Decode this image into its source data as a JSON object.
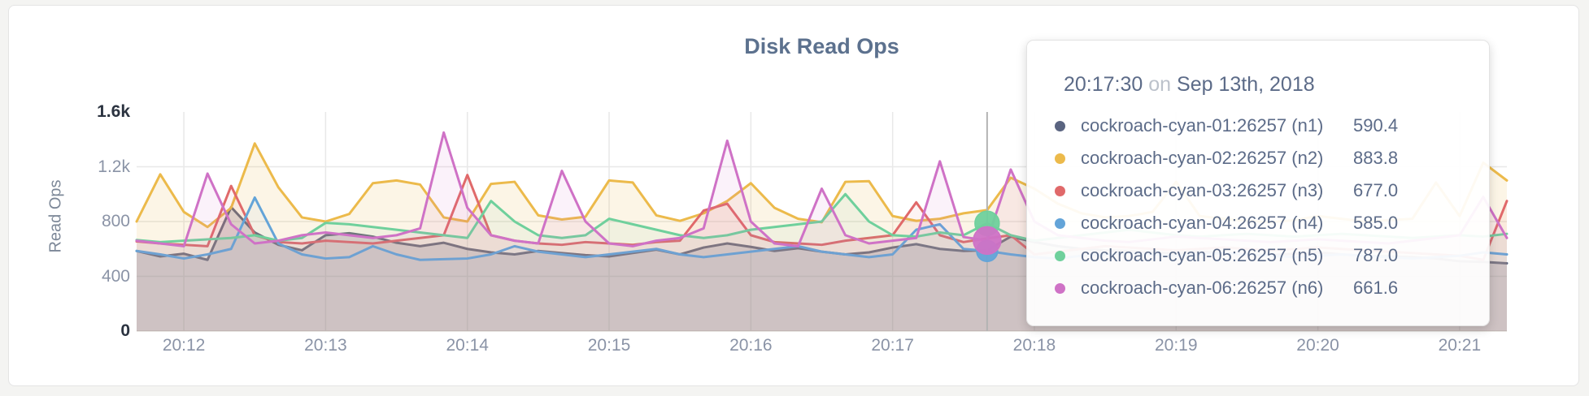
{
  "page": {
    "background": "#f4f4f2",
    "panel_background": "#ffffff",
    "panel_border": "#e4e4e4"
  },
  "chart_data": {
    "type": "line",
    "title": "Disk Read Ops",
    "ylabel": "Read Ops",
    "ylim": [
      0,
      1600
    ],
    "grid": true,
    "x_unit": "time",
    "x_start": "20:11:40",
    "x_step_seconds": 10,
    "grid_y": [
      400,
      800,
      1200
    ],
    "y_ticks": [
      {
        "value": 0,
        "label": "0",
        "emph": true
      },
      {
        "value": 400,
        "label": "400",
        "emph": false
      },
      {
        "value": 800,
        "label": "800",
        "emph": false
      },
      {
        "value": 1200,
        "label": "1.2k",
        "emph": false
      },
      {
        "value": 1600,
        "label": "1.6k",
        "emph": true
      }
    ],
    "x_ticks": [
      {
        "index": 2,
        "label": "20:12"
      },
      {
        "index": 8,
        "label": "20:13"
      },
      {
        "index": 14,
        "label": "20:14"
      },
      {
        "index": 20,
        "label": "20:15"
      },
      {
        "index": 26,
        "label": "20:16"
      },
      {
        "index": 32,
        "label": "20:17"
      },
      {
        "index": 38,
        "label": "20:18"
      },
      {
        "index": 44,
        "label": "20:19"
      },
      {
        "index": 50,
        "label": "20:20"
      },
      {
        "index": 56,
        "label": "20:21"
      }
    ],
    "series": [
      {
        "id": "n1",
        "name": "cockroach-cyan-01:26257 (n1)",
        "color": "#5a6480",
        "fill_opacity": 0.22,
        "values": [
          585,
          545,
          565,
          520,
          905,
          720,
          630,
          590,
          700,
          715,
          690,
          645,
          620,
          645,
          600,
          575,
          560,
          585,
          570,
          555,
          545,
          570,
          595,
          560,
          610,
          640,
          615,
          585,
          605,
          580,
          560,
          575,
          610,
          635,
          600,
          585,
          590.4,
          690,
          650,
          620,
          600,
          590,
          585,
          575,
          565,
          580,
          570,
          560,
          555,
          565,
          575,
          560,
          550,
          545,
          540,
          530,
          510,
          505,
          495
        ]
      },
      {
        "id": "n2",
        "name": "cockroach-cyan-02:26257 (n2)",
        "color": "#ecba4b",
        "fill_opacity": 0.14,
        "values": [
          800,
          1145,
          870,
          760,
          900,
          1370,
          1050,
          830,
          800,
          855,
          1080,
          1100,
          1070,
          830,
          800,
          1075,
          1090,
          845,
          815,
          835,
          1100,
          1085,
          845,
          805,
          860,
          950,
          1080,
          900,
          820,
          795,
          1090,
          1095,
          840,
          805,
          820,
          860,
          883.8,
          1120,
          1040,
          930,
          860,
          830,
          840,
          870,
          1090,
          840,
          820,
          805,
          795,
          810,
          840,
          820,
          800,
          810,
          820,
          1085,
          840,
          1230,
          1100
        ]
      },
      {
        "id": "n3",
        "name": "cockroach-cyan-03:26257 (n3)",
        "color": "#e0696a",
        "fill_opacity": 0.07,
        "values": [
          655,
          640,
          630,
          620,
          1060,
          700,
          650,
          640,
          660,
          650,
          640,
          660,
          680,
          700,
          1140,
          700,
          660,
          640,
          630,
          650,
          640,
          630,
          650,
          660,
          880,
          930,
          700,
          650,
          640,
          630,
          660,
          680,
          700,
          940,
          700,
          650,
          677,
          700,
          560,
          580,
          600,
          620,
          610,
          600,
          590,
          600,
          610,
          600,
          590,
          600,
          610,
          600,
          590,
          580,
          570,
          560,
          550,
          520,
          950
        ]
      },
      {
        "id": "n4",
        "name": "cockroach-cyan-04:26257 (n4)",
        "color": "#63a4d8",
        "fill_opacity": 0.06,
        "values": [
          585,
          560,
          530,
          560,
          600,
          975,
          640,
          560,
          530,
          540,
          620,
          560,
          520,
          525,
          530,
          560,
          620,
          580,
          560,
          540,
          560,
          580,
          600,
          560,
          540,
          560,
          580,
          600,
          620,
          580,
          560,
          540,
          560,
          740,
          780,
          600,
          585,
          560,
          540,
          530,
          550,
          560,
          570,
          560,
          550,
          560,
          570,
          560,
          550,
          540,
          550,
          560,
          550,
          540,
          530,
          540,
          550,
          575,
          560
        ]
      },
      {
        "id": "n5",
        "name": "cockroach-cyan-05:26257 (n5)",
        "color": "#6fd09c",
        "fill_opacity": 0.08,
        "values": [
          665,
          650,
          660,
          670,
          680,
          700,
          660,
          680,
          790,
          780,
          760,
          740,
          720,
          700,
          680,
          950,
          800,
          700,
          680,
          700,
          820,
          780,
          740,
          700,
          680,
          700,
          740,
          760,
          780,
          800,
          1000,
          800,
          700,
          690,
          720,
          700,
          787,
          700,
          660,
          680,
          700,
          720,
          740,
          720,
          700,
          690,
          700,
          710,
          700,
          690,
          700,
          710,
          700,
          690,
          680,
          690,
          700,
          690,
          710
        ]
      },
      {
        "id": "n6",
        "name": "cockroach-cyan-06:26257 (n6)",
        "color": "#cf72c6",
        "fill_opacity": 0.09,
        "values": [
          660,
          640,
          620,
          1150,
          780,
          640,
          660,
          700,
          720,
          700,
          680,
          700,
          750,
          1450,
          900,
          700,
          660,
          640,
          1170,
          800,
          640,
          620,
          660,
          680,
          750,
          1390,
          800,
          640,
          620,
          1040,
          700,
          640,
          660,
          680,
          1240,
          687,
          661.6,
          1180,
          800,
          700,
          680,
          660,
          650,
          670,
          690,
          680,
          670,
          660,
          650,
          660,
          670,
          660,
          650,
          640,
          660,
          680,
          700,
          980,
          680
        ]
      }
    ],
    "hover": {
      "index": 36,
      "guideline_color": "#b3b3b3",
      "markers": [
        {
          "series": "n5",
          "r": 15
        },
        {
          "series": "n4",
          "r": 13
        },
        {
          "series": "n6",
          "r": 17
        }
      ]
    }
  },
  "tooltip": {
    "time": "20:17:30",
    "separator": "on",
    "date": "Sep 13th, 2018",
    "rows": [
      {
        "label": "cockroach-cyan-01:26257 (n1)",
        "value": "590.4",
        "color": "#5a6480"
      },
      {
        "label": "cockroach-cyan-02:26257 (n2)",
        "value": "883.8",
        "color": "#ecba4b"
      },
      {
        "label": "cockroach-cyan-03:26257 (n3)",
        "value": "677.0",
        "color": "#e0696a"
      },
      {
        "label": "cockroach-cyan-04:26257 (n4)",
        "value": "585.0",
        "color": "#63a4d8"
      },
      {
        "label": "cockroach-cyan-05:26257 (n5)",
        "value": "787.0",
        "color": "#6fd09c"
      },
      {
        "label": "cockroach-cyan-06:26257 (n6)",
        "value": "661.6",
        "color": "#cf72c6"
      }
    ]
  }
}
